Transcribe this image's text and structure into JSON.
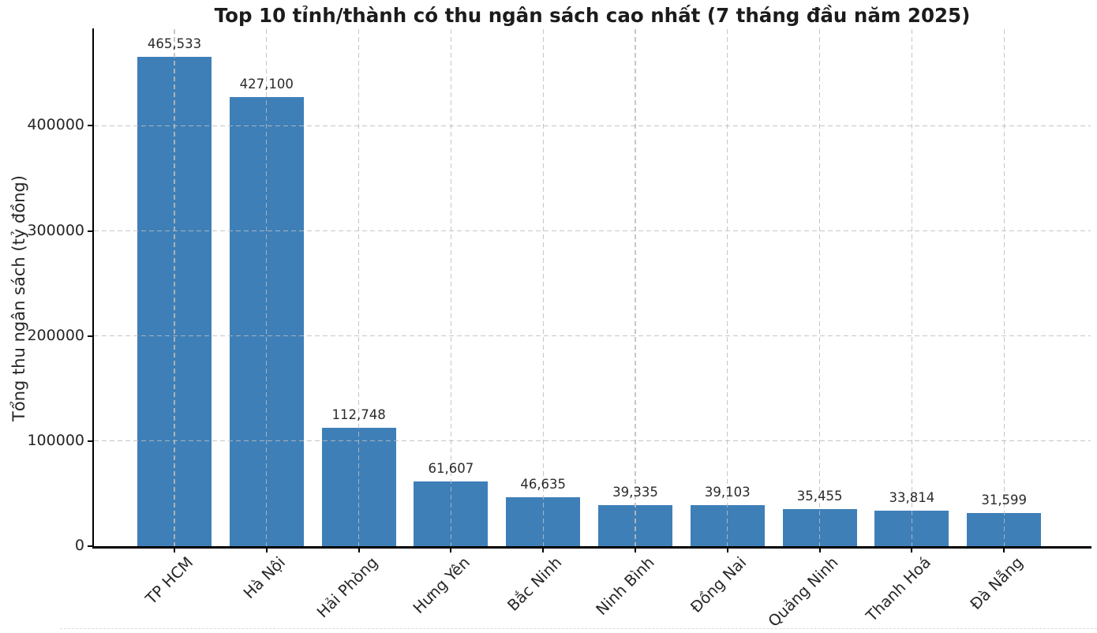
{
  "chart_data": {
    "type": "bar",
    "title": "Top 10 tỉnh/thành có thu ngân sách cao nhất (7 tháng đầu năm 2025)",
    "ylabel": "Tổng thu ngân sách (tỷ đồng)",
    "xlabel": "",
    "categories": [
      "TP HCM",
      "Hà Nội",
      "Hải Phòng",
      "Hưng Yên",
      "Bắc Ninh",
      "Ninh Bình",
      "Đồng Nai",
      "Quảng Ninh",
      "Thanh Hoá",
      "Đà Nẵng"
    ],
    "values": [
      465533,
      427100,
      112748,
      61607,
      46635,
      39335,
      39103,
      35455,
      33814,
      31599
    ],
    "value_labels": [
      "465,533",
      "427,100",
      "112,748",
      "61,607",
      "46,635",
      "39,335",
      "39,103",
      "35,455",
      "33,814",
      "31,599"
    ],
    "unit": "tỷ đồng",
    "yticks": [
      0,
      100000,
      200000,
      300000,
      400000
    ],
    "ytick_labels": [
      "0",
      "100000",
      "200000",
      "300000",
      "400000"
    ],
    "ylim": [
      0,
      492000
    ],
    "grid": {
      "style": "dashed",
      "axes": "both"
    },
    "legend": "none",
    "colors": {
      "bar": "#3e7fb8",
      "grid": "#c8c8c8",
      "axis": "#000000",
      "title_text": "#1c1c1c",
      "tick_text": "#262626"
    }
  }
}
